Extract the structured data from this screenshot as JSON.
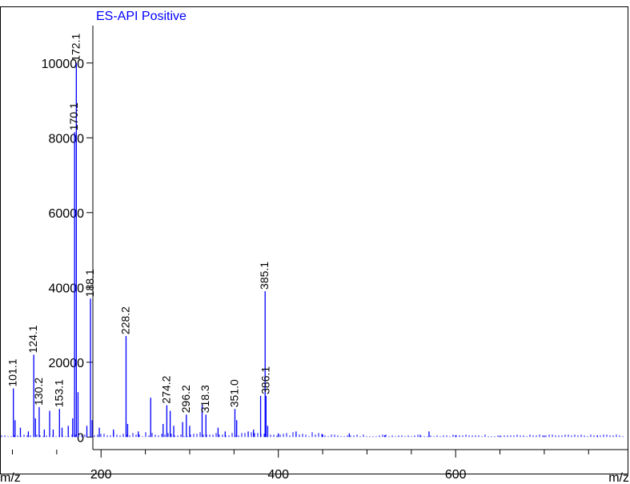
{
  "chart_data": {
    "type": "bar",
    "title": "ES-API Positive",
    "xlabel": "m/z",
    "ylabel": "",
    "xlim": [
      86,
      794
    ],
    "ylim": [
      -4000,
      110000
    ],
    "x_ticks": [
      200,
      400,
      600
    ],
    "x_minor_ticks": [
      100,
      150,
      250,
      300,
      350,
      450,
      500,
      550,
      650,
      700,
      750
    ],
    "y_ticks": [
      0,
      20000,
      40000,
      60000,
      80000,
      100000
    ],
    "grid": false,
    "series": [
      {
        "values": [
          {
            "x": 101.1,
            "y": 13000
          },
          {
            "x": 103.0,
            "y": 4500
          },
          {
            "x": 109.0,
            "y": 2500
          },
          {
            "x": 118.0,
            "y": 1500
          },
          {
            "x": 124.1,
            "y": 22000
          },
          {
            "x": 126.0,
            "y": 5000
          },
          {
            "x": 130.2,
            "y": 8000
          },
          {
            "x": 136.0,
            "y": 2000
          },
          {
            "x": 142.0,
            "y": 7000
          },
          {
            "x": 146.0,
            "y": 2000
          },
          {
            "x": 153.1,
            "y": 7500
          },
          {
            "x": 156.0,
            "y": 2500
          },
          {
            "x": 163.0,
            "y": 3000
          },
          {
            "x": 168.0,
            "y": 5000
          },
          {
            "x": 170.1,
            "y": 81500
          },
          {
            "x": 172.1,
            "y": 100000
          },
          {
            "x": 174.0,
            "y": 12000
          },
          {
            "x": 184.0,
            "y": 3000
          },
          {
            "x": 188.1,
            "y": 37000
          },
          {
            "x": 190.0,
            "y": 4500
          },
          {
            "x": 198.0,
            "y": 2500
          },
          {
            "x": 214.0,
            "y": 2000
          },
          {
            "x": 228.2,
            "y": 27000
          },
          {
            "x": 230.0,
            "y": 3500
          },
          {
            "x": 242.0,
            "y": 1500
          },
          {
            "x": 256.0,
            "y": 10500
          },
          {
            "x": 270.0,
            "y": 3500
          },
          {
            "x": 274.2,
            "y": 8500
          },
          {
            "x": 278.0,
            "y": 7000
          },
          {
            "x": 282.0,
            "y": 3000
          },
          {
            "x": 292.0,
            "y": 4000
          },
          {
            "x": 296.2,
            "y": 6000
          },
          {
            "x": 300.0,
            "y": 3000
          },
          {
            "x": 314.0,
            "y": 8500
          },
          {
            "x": 318.3,
            "y": 6000
          },
          {
            "x": 332.0,
            "y": 2500
          },
          {
            "x": 340.0,
            "y": 1500
          },
          {
            "x": 351.0,
            "y": 7500
          },
          {
            "x": 353.0,
            "y": 4500
          },
          {
            "x": 366.0,
            "y": 1500
          },
          {
            "x": 372.0,
            "y": 2000
          },
          {
            "x": 380.0,
            "y": 11000
          },
          {
            "x": 385.1,
            "y": 39000
          },
          {
            "x": 386.1,
            "y": 11000
          },
          {
            "x": 388.0,
            "y": 3000
          },
          {
            "x": 400.0,
            "y": 1000
          },
          {
            "x": 420.0,
            "y": 1500
          },
          {
            "x": 450.0,
            "y": 700
          },
          {
            "x": 480.0,
            "y": 1000
          },
          {
            "x": 520.0,
            "y": 500
          },
          {
            "x": 560.0,
            "y": 600
          },
          {
            "x": 570.0,
            "y": 1500
          },
          {
            "x": 600.0,
            "y": 500
          },
          {
            "x": 650.0,
            "y": 400
          },
          {
            "x": 700.0,
            "y": 400
          },
          {
            "x": 760.0,
            "y": 400
          }
        ]
      }
    ],
    "peak_labels": [
      "101.1",
      "124.1",
      "130.2",
      "153.1",
      "170.1",
      "172.1",
      "188.1",
      "228.2",
      "274.2",
      "296.2",
      "318.3",
      "351.0",
      "385.1",
      "386.1"
    ],
    "colors": {
      "peaks": "#0000ff",
      "title": "#0000ff",
      "axes": "#000000"
    }
  }
}
